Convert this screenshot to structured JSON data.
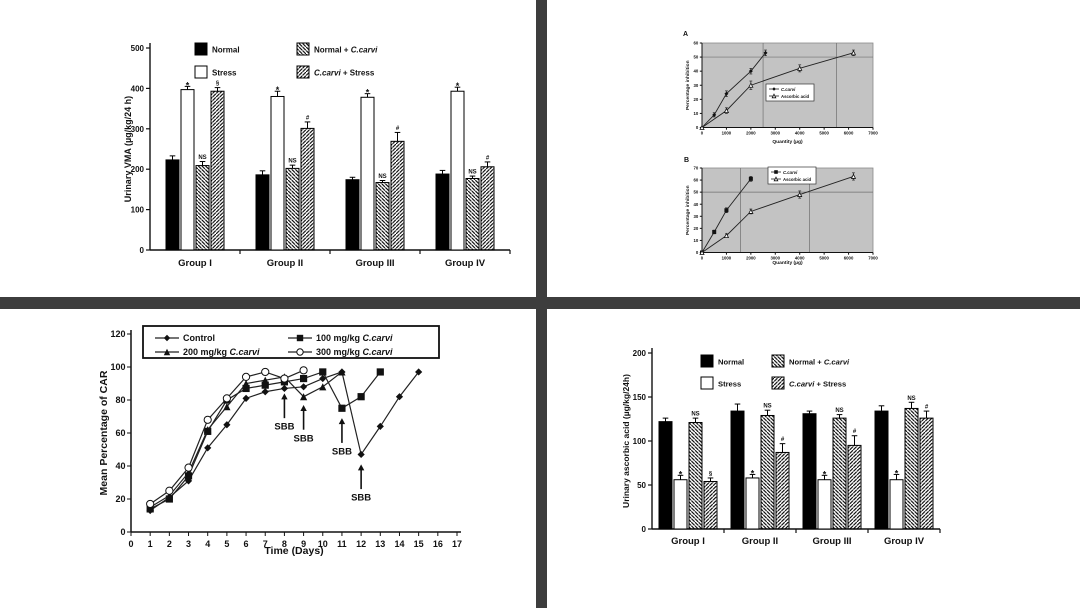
{
  "colors": {
    "divider": "#3d3d3d",
    "plot_background": "#c3c3c3",
    "ink": "#111111"
  },
  "chart_data": [
    {
      "id": "urinary_vma",
      "type": "bar",
      "ylabel": "Urinary VMA (µg/kg/24 h)",
      "ylim": [
        0,
        500
      ],
      "yticks": [
        0,
        100,
        200,
        300,
        400,
        500
      ],
      "categories": [
        "Group I",
        "Group II",
        "Group III",
        "Group IV"
      ],
      "series": [
        {
          "name": "Normal",
          "style": "solid-black",
          "values": [
            223,
            186,
            174,
            188
          ],
          "errors": [
            10,
            10,
            6,
            9
          ],
          "annotations": [
            "",
            "",
            "",
            ""
          ]
        },
        {
          "name": "Stress",
          "style": "open-white",
          "values": [
            397,
            380,
            378,
            393
          ],
          "errors": [
            8,
            13,
            9,
            10
          ],
          "annotations": [
            "*",
            "*",
            "*",
            "*"
          ]
        },
        {
          "name": "Normal + C.carvi",
          "style": "hatch-back",
          "values": [
            209,
            202,
            167,
            177
          ],
          "errors": [
            10,
            8,
            5,
            6
          ],
          "annotations": [
            "NS",
            "NS",
            "NS",
            "NS"
          ]
        },
        {
          "name": "C.carvi + Stress",
          "style": "hatch-fwd",
          "values": [
            393,
            301,
            269,
            206
          ],
          "errors": [
            9,
            16,
            22,
            12
          ],
          "annotations": [
            "§",
            "#",
            "#",
            "#"
          ]
        }
      ]
    },
    {
      "id": "inhibition_a",
      "type": "line",
      "panel_label": "A",
      "ylabel": "Percentage inhibition",
      "xlabel": "Quantity (µg)",
      "ylim": [
        0,
        60
      ],
      "yticks": [
        0,
        10,
        20,
        30,
        40,
        50,
        60
      ],
      "xlim": [
        0,
        7000
      ],
      "xticks": [
        0,
        1000,
        2000,
        3000,
        4000,
        5000,
        6000,
        7000
      ],
      "grid": false,
      "ref_lines": {
        "h": [
          50
        ],
        "v": [
          2500,
          5500
        ]
      },
      "legend_position": "middle-right",
      "series": [
        {
          "name": "C.carvi",
          "marker": "diamond-filled",
          "x": [
            0,
            500,
            1000,
            2000,
            2600
          ],
          "y": [
            0,
            9,
            24,
            40,
            53
          ],
          "err": [
            0,
            1.5,
            2,
            2,
            2
          ]
        },
        {
          "name": "Ascorbic acid",
          "marker": "triangle-open",
          "x": [
            0,
            1000,
            2000,
            4000,
            6200
          ],
          "y": [
            0,
            12,
            30,
            42,
            53
          ],
          "err": [
            0,
            2,
            3,
            2.5,
            2
          ]
        }
      ]
    },
    {
      "id": "inhibition_b",
      "type": "line",
      "panel_label": "B",
      "ylabel": "Percentage inhibition",
      "xlabel": "Quantity (µg)",
      "ylim": [
        0,
        70
      ],
      "yticks": [
        0,
        10,
        20,
        30,
        40,
        50,
        60,
        70
      ],
      "xlim": [
        0,
        7000
      ],
      "xticks": [
        0,
        1000,
        2000,
        3000,
        4000,
        5000,
        6000,
        7000
      ],
      "grid": false,
      "ref_lines": {
        "h": [
          50
        ],
        "v": [
          1580,
          4400
        ]
      },
      "legend_position": "top-center",
      "series": [
        {
          "name": "C.carvi",
          "marker": "square-filled",
          "x": [
            0,
            500,
            1000,
            2000
          ],
          "y": [
            0,
            17,
            35,
            61
          ],
          "err": [
            0,
            1.5,
            2,
            2
          ]
        },
        {
          "name": "Ascorbic acid",
          "marker": "triangle-open",
          "x": [
            0,
            1000,
            2000,
            4000,
            6200
          ],
          "y": [
            0,
            14,
            34,
            48,
            63
          ],
          "err": [
            0,
            1.5,
            2,
            3,
            3
          ]
        }
      ]
    },
    {
      "id": "car",
      "type": "line",
      "ylabel": "Mean Percentage of CAR",
      "xlabel": "Time (Days)",
      "ylim": [
        0,
        120
      ],
      "yticks": [
        0,
        20,
        40,
        60,
        80,
        100,
        120
      ],
      "xlim": [
        0,
        17
      ],
      "xticks": [
        0,
        1,
        2,
        3,
        4,
        5,
        6,
        7,
        8,
        9,
        10,
        11,
        12,
        13,
        14,
        15,
        16,
        17
      ],
      "grid": false,
      "legend_position": "top-box",
      "series": [
        {
          "name": "Control",
          "marker": "diamond-filled",
          "x": [
            1,
            2,
            3,
            4,
            5,
            6,
            7,
            8,
            9,
            10,
            11,
            12,
            13,
            14,
            15
          ],
          "y": [
            13,
            21,
            31,
            51,
            65,
            81,
            85,
            87,
            88,
            93,
            97,
            47,
            64,
            82,
            97
          ]
        },
        {
          "name": "100 mg/kg C.carvi",
          "marker": "square-filled",
          "x": [
            1,
            2,
            3,
            4,
            5,
            6,
            7,
            8,
            9,
            10,
            11,
            12,
            13
          ],
          "y": [
            14,
            20,
            34,
            61,
            80,
            87,
            89,
            91,
            93,
            97,
            75,
            82,
            97
          ]
        },
        {
          "name": "200 mg/kg C.carvi",
          "marker": "triangle-filled",
          "x": [
            1,
            2,
            3,
            4,
            5,
            6,
            7,
            8,
            9,
            10,
            11
          ],
          "y": [
            15,
            22,
            36,
            62,
            76,
            90,
            92,
            94,
            82,
            88,
            97
          ]
        },
        {
          "name": "300 mg/kg C.carvi",
          "marker": "circle-open",
          "x": [
            1,
            2,
            3,
            4,
            5,
            6,
            7,
            8,
            9
          ],
          "y": [
            17,
            25,
            39,
            68,
            81,
            94,
            97,
            93,
            98
          ]
        }
      ],
      "annotations_sbb": [
        {
          "label": "SBB",
          "x": 8,
          "tip_y": 84,
          "tail_y": 69,
          "label_y": 62
        },
        {
          "label": "SBB",
          "x": 9,
          "tip_y": 77,
          "tail_y": 62,
          "label_y": 55
        },
        {
          "label": "SBB",
          "x": 11,
          "tip_y": 69,
          "tail_y": 54,
          "label_y": 47
        },
        {
          "label": "SBB",
          "x": 12,
          "tip_y": 41,
          "tail_y": 26,
          "label_y": 19
        }
      ]
    },
    {
      "id": "urinary_ascorbic",
      "type": "bar",
      "ylabel": "Urinary ascorbic acid (µg/kg/24h)",
      "ylim": [
        0,
        200
      ],
      "yticks": [
        0,
        50,
        100,
        150,
        200
      ],
      "categories": [
        "Group I",
        "Group II",
        "Group III",
        "Group IV"
      ],
      "series": [
        {
          "name": "Normal",
          "style": "solid-black",
          "values": [
            122,
            134,
            131,
            134
          ],
          "errors": [
            4,
            8,
            3,
            6
          ],
          "annotations": [
            "",
            "",
            "",
            ""
          ]
        },
        {
          "name": "Stress",
          "style": "open-white",
          "values": [
            56,
            58,
            56,
            56
          ],
          "errors": [
            5,
            4,
            5,
            6
          ],
          "annotations": [
            "*",
            "*",
            "*",
            "*"
          ]
        },
        {
          "name": "Normal + C.carvi",
          "style": "hatch-back",
          "values": [
            121,
            129,
            126,
            137
          ],
          "errors": [
            5,
            6,
            4,
            7
          ],
          "annotations": [
            "NS",
            "NS",
            "NS",
            "NS"
          ]
        },
        {
          "name": "C.carvi + Stress",
          "style": "hatch-fwd",
          "values": [
            54,
            87,
            95,
            126
          ],
          "errors": [
            4,
            10,
            11,
            8
          ],
          "annotations": [
            "§",
            "#",
            "#",
            "#"
          ]
        }
      ]
    }
  ]
}
